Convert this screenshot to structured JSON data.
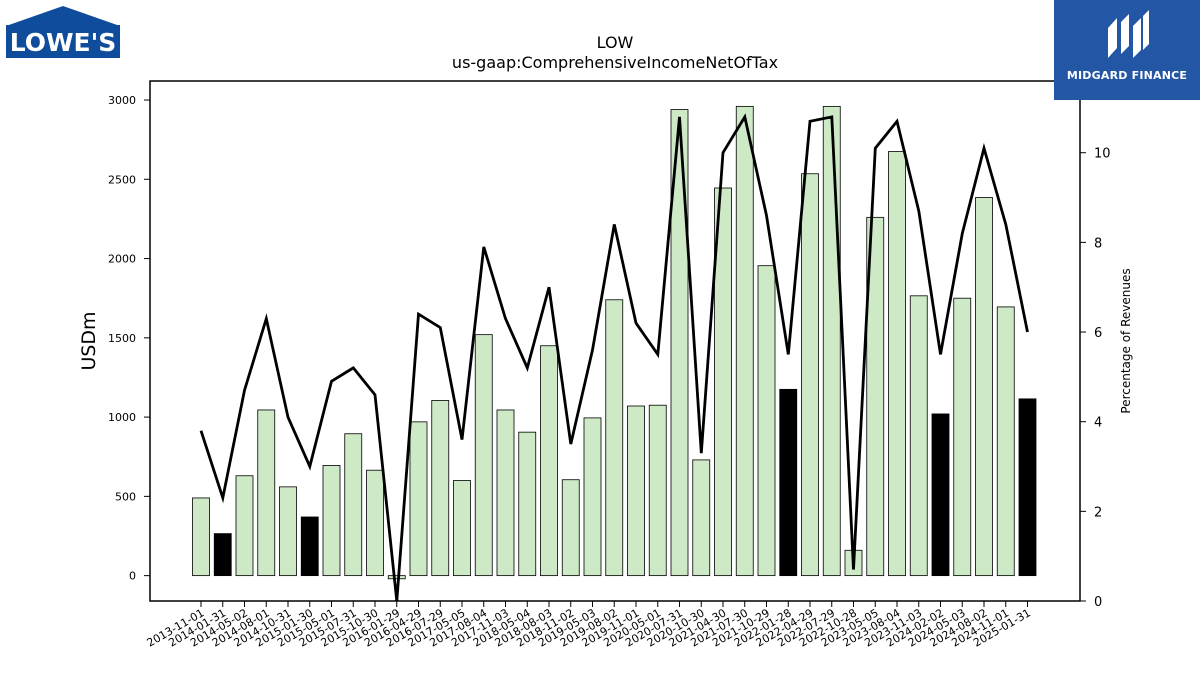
{
  "brand": {
    "left_logo_text": "LOWE'S",
    "right_logo_text": "MIDGARD FINANCE",
    "left_logo_color": "#0f4c9c",
    "right_logo_color": "#2456a6"
  },
  "chart_data": {
    "type": "bar",
    "title": "LOW",
    "subtitle": "us-gaap:ComprehensiveIncomeNetOfTax",
    "ylabel": "USDm",
    "y2label": "Percentage of Revenues",
    "ylim": [
      -160,
      3120
    ],
    "y2lim": [
      0,
      11.6
    ],
    "yticks": [
      0,
      500,
      1000,
      1500,
      2000,
      2500,
      3000
    ],
    "y2ticks": [
      0,
      2,
      4,
      6,
      8,
      10
    ],
    "bar_colors": {
      "default": "#cde9c6",
      "q4": "#000000"
    },
    "categories": [
      "2013-11-01",
      "2014-01-31",
      "2014-05-02",
      "2014-08-01",
      "2014-10-31",
      "2015-01-30",
      "2015-05-01",
      "2015-07-31",
      "2015-10-30",
      "2016-01-29",
      "2016-04-29",
      "2016-07-29",
      "2017-05-05",
      "2017-08-04",
      "2017-11-03",
      "2018-05-04",
      "2018-08-03",
      "2018-11-02",
      "2019-05-03",
      "2019-08-02",
      "2019-11-01",
      "2020-05-01",
      "2020-07-31",
      "2020-10-30",
      "2021-04-30",
      "2021-07-30",
      "2021-10-29",
      "2022-01-28",
      "2022-04-29",
      "2022-07-29",
      "2022-10-28",
      "2023-05-05",
      "2023-08-04",
      "2023-11-03",
      "2024-02-02",
      "2024-05-03",
      "2024-08-02",
      "2024-11-01",
      "2025-01-31"
    ],
    "series": [
      {
        "type": "bar",
        "values": [
          490,
          265,
          630,
          1045,
          560,
          370,
          695,
          895,
          665,
          -20,
          970,
          1105,
          600,
          1520,
          1045,
          905,
          1450,
          605,
          995,
          1740,
          1070,
          1075,
          2940,
          730,
          2445,
          2960,
          1955,
          1175,
          2535,
          2960,
          160,
          2260,
          2675,
          1765,
          1020,
          1750,
          2385,
          1695,
          1115
        ],
        "highlight": [
          false,
          true,
          false,
          false,
          false,
          true,
          false,
          false,
          false,
          false,
          false,
          false,
          false,
          false,
          false,
          false,
          false,
          false,
          false,
          false,
          false,
          false,
          false,
          false,
          false,
          false,
          false,
          true,
          false,
          false,
          false,
          false,
          false,
          false,
          true,
          false,
          false,
          false,
          true
        ]
      },
      {
        "type": "line",
        "axis": "right",
        "values": [
          3.8,
          2.3,
          4.7,
          6.3,
          4.1,
          3.0,
          4.9,
          5.2,
          4.6,
          0.0,
          6.4,
          6.1,
          3.6,
          7.9,
          6.3,
          5.2,
          7.0,
          3.5,
          5.6,
          8.4,
          6.2,
          5.5,
          10.8,
          3.3,
          10.0,
          10.8,
          8.6,
          5.5,
          10.7,
          10.8,
          0.7,
          10.1,
          10.7,
          8.7,
          5.5,
          8.2,
          10.1,
          8.4,
          6.0
        ]
      }
    ],
    "grid": false,
    "legend": "none"
  }
}
